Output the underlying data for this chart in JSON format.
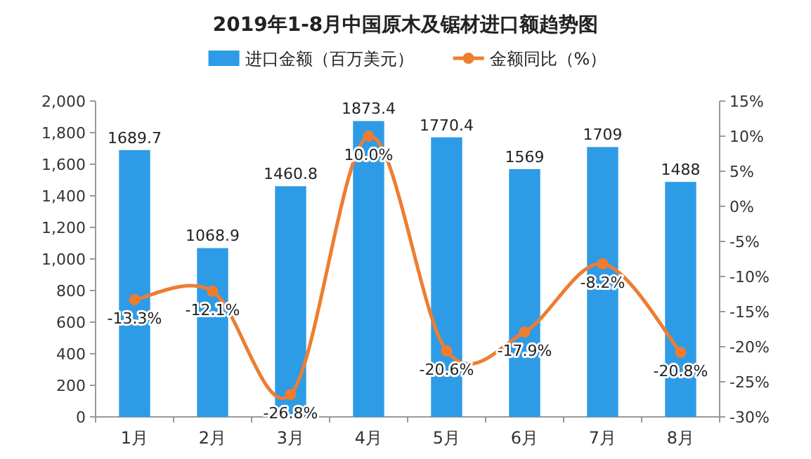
{
  "chart_data": {
    "type": "bar",
    "title": "2019年1-8月中国原木及锯材进口额趋势图",
    "categories": [
      "1月",
      "2月",
      "3月",
      "4月",
      "5月",
      "6月",
      "7月",
      "8月"
    ],
    "series": [
      {
        "name": "进口金额（百万美元）",
        "color": "#2e9be6",
        "values": [
          1689.7,
          1068.9,
          1460.8,
          1873.4,
          1770.4,
          1569,
          1709,
          1488
        ],
        "value_labels": [
          "1689.7",
          "1068.9",
          "1460.8",
          "1873.4",
          "1770.4",
          "1569",
          "1709",
          "1488"
        ]
      },
      {
        "name": "金额同比（%）",
        "type": "line",
        "axis": "y2",
        "color": "#ed7d31",
        "marker": "circle",
        "values": [
          -13.3,
          -12.1,
          -26.8,
          10.0,
          -20.6,
          -17.9,
          -8.2,
          -20.8
        ],
        "value_labels": [
          "-13.3%",
          "-12.1%",
          "-26.8%",
          "10.0%",
          "-20.6%",
          "-17.9%",
          "-8.2%",
          "-20.8%"
        ]
      }
    ],
    "ylim": [
      0,
      2000
    ],
    "yticks": [
      0,
      200,
      400,
      600,
      800,
      {
        "value": 1000,
        "label": "1,000"
      },
      {
        "value": 1200,
        "label": "1,200"
      },
      {
        "value": 1400,
        "label": "1,400"
      },
      {
        "value": 1600,
        "label": "1,600"
      },
      {
        "value": 1800,
        "label": "1,800"
      },
      {
        "value": 2000,
        "label": "2,000"
      }
    ],
    "y2lim": [
      -30,
      15
    ],
    "y2ticks": [
      {
        "value": -30,
        "label": "-30%"
      },
      {
        "value": -25,
        "label": "-25%"
      },
      {
        "value": -20,
        "label": "-20%"
      },
      {
        "value": -15,
        "label": "-15%"
      },
      {
        "value": -10,
        "label": "-10%"
      },
      {
        "value": -5,
        "label": "-5%"
      },
      {
        "value": 0,
        "label": "0%"
      },
      {
        "value": 5,
        "label": "5%"
      },
      {
        "value": 10,
        "label": "10%"
      },
      {
        "value": 15,
        "label": "15%"
      }
    ],
    "legend": "top",
    "grid": false
  }
}
